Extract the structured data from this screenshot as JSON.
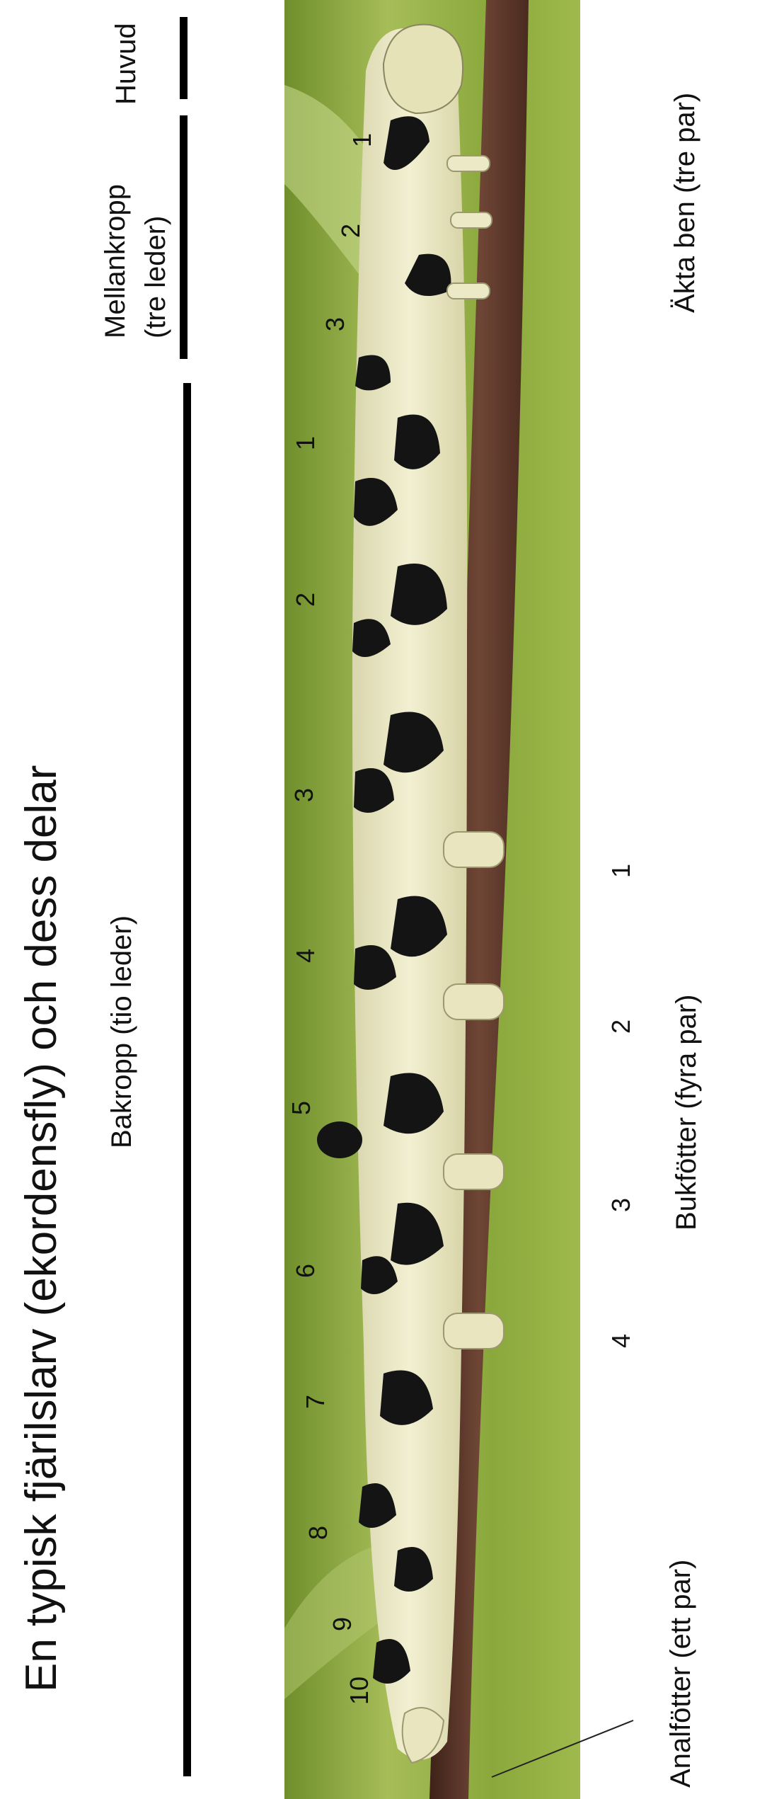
{
  "title": "En typisk fjärilslarv (ekordensfly) och dess delar",
  "regions": {
    "head": "Huvud",
    "thorax_line1": "Mellankropp",
    "thorax_line2": "(tre leder)",
    "abdomen": "Bakropp (tio leder)"
  },
  "legs": {
    "true_legs": "Äkta ben (tre par)",
    "prolegs": "Bukfötter (fyra par)",
    "anal_prolegs": "Analfötter (ett par)"
  },
  "numbers": {
    "thorax": [
      "1",
      "2",
      "3"
    ],
    "abdomen": [
      "1",
      "2",
      "3",
      "4",
      "5",
      "6",
      "7",
      "8",
      "9",
      "10"
    ],
    "prolegs": [
      "1",
      "2",
      "3",
      "4"
    ]
  },
  "colors": {
    "leaf_green": "#8aa83c",
    "twig_brown": "#5e3b2e",
    "larva_cream": "#ece9c6",
    "larva_black": "#141414"
  }
}
